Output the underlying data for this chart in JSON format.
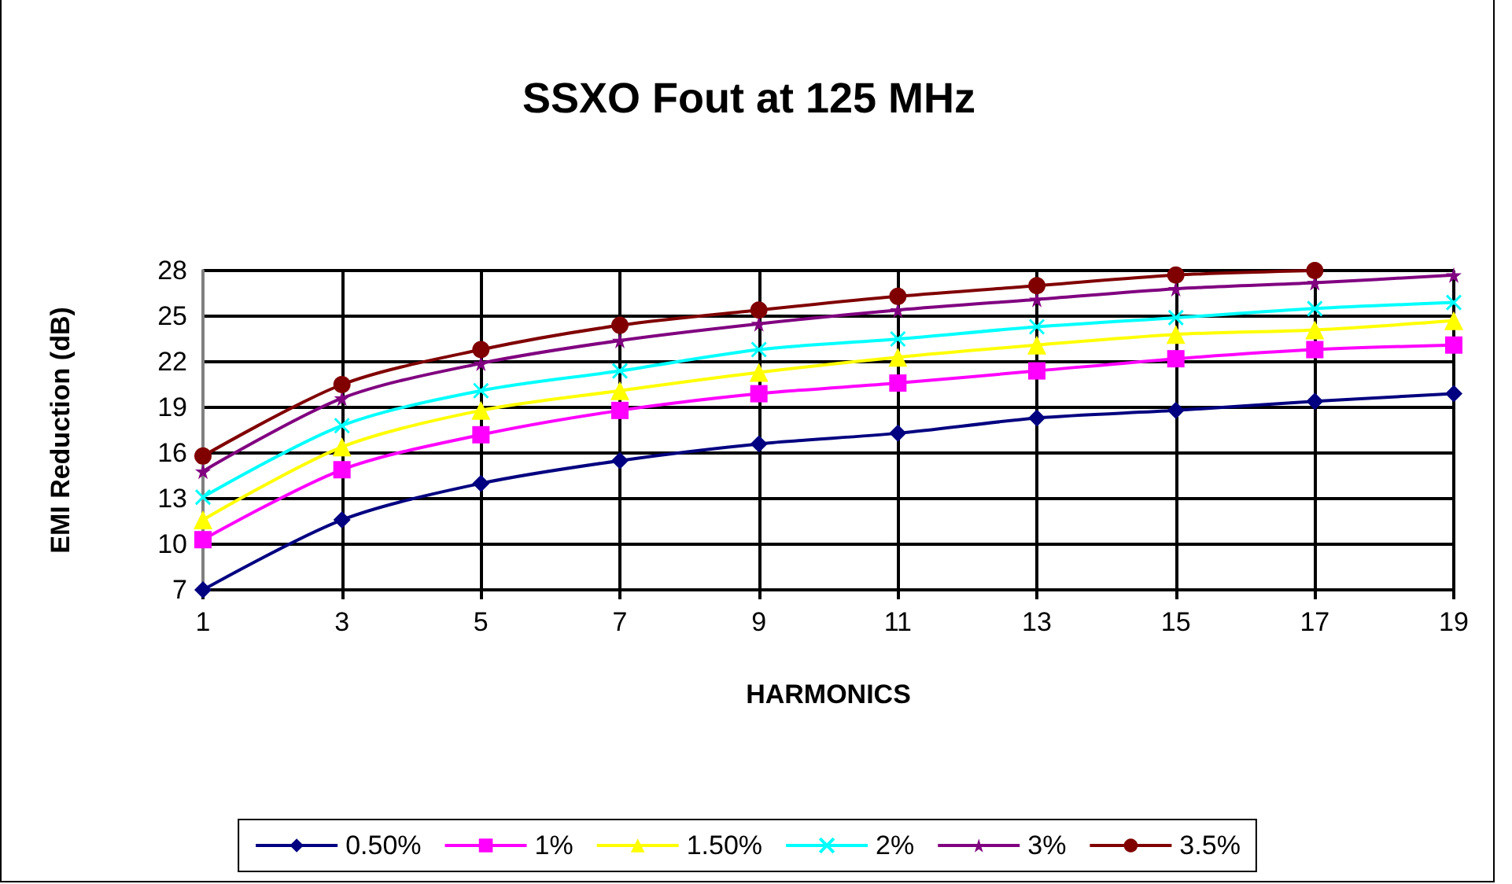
{
  "chart_data": {
    "type": "line",
    "title": "SSXO Fout at 125 MHz",
    "xlabel": "HARMONICS",
    "ylabel": "EMI Reduction (dB)",
    "x": [
      1,
      3,
      5,
      7,
      9,
      11,
      13,
      15,
      17,
      19
    ],
    "xlim": [
      1,
      19
    ],
    "xticks": [
      1,
      3,
      5,
      7,
      9,
      11,
      13,
      15,
      17,
      19
    ],
    "ylim": [
      7,
      28
    ],
    "yticks": [
      7,
      10,
      13,
      16,
      19,
      22,
      25,
      28
    ],
    "grid": true,
    "legend": "bottom",
    "series": [
      {
        "name": "0.50%",
        "color": "#000080",
        "marker": "diamond",
        "values": [
          7.0,
          11.6,
          14.0,
          15.5,
          16.6,
          17.3,
          18.3,
          18.8,
          19.4,
          19.9
        ]
      },
      {
        "name": "1%",
        "color": "#ff00ff",
        "marker": "square",
        "values": [
          10.3,
          14.9,
          17.2,
          18.8,
          19.9,
          20.6,
          21.4,
          22.2,
          22.8,
          23.1
        ]
      },
      {
        "name": "1.50%",
        "color": "#ffff00",
        "marker": "triangle",
        "values": [
          11.6,
          16.4,
          18.8,
          20.1,
          21.3,
          22.3,
          23.1,
          23.8,
          24.1,
          24.7
        ]
      },
      {
        "name": "2%",
        "color": "#00ffff",
        "marker": "cross",
        "values": [
          13.1,
          17.8,
          20.1,
          21.4,
          22.8,
          23.5,
          24.3,
          24.9,
          25.5,
          25.9
        ]
      },
      {
        "name": "3%",
        "color": "#800080",
        "marker": "star",
        "values": [
          14.8,
          19.6,
          21.9,
          23.4,
          24.5,
          25.4,
          26.1,
          26.8,
          27.2,
          27.7
        ]
      },
      {
        "name": "3.5%",
        "color": "#800000",
        "marker": "circle",
        "values": [
          15.8,
          20.5,
          22.8,
          24.4,
          25.4,
          26.3,
          27.0,
          27.7,
          28.0,
          null
        ]
      }
    ]
  }
}
